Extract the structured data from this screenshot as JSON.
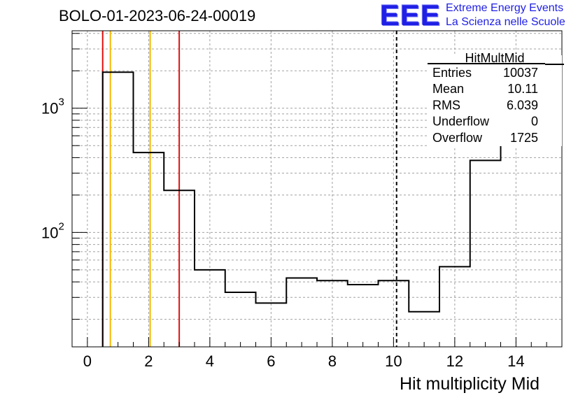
{
  "header": {
    "title": "BOLO-01-2023-06-24-00019",
    "logo_text": "EEE",
    "logo_line1": "Extreme Energy Events",
    "logo_line2": "La Scienza nelle Scuole"
  },
  "stats_box": {
    "title": "HitMultMid",
    "rows": [
      {
        "label": "Entries",
        "value": "10037"
      },
      {
        "label": "Mean",
        "value": "10.11"
      },
      {
        "label": "RMS",
        "value": "6.039"
      },
      {
        "label": "Underflow",
        "value": "0"
      },
      {
        "label": "Overflow",
        "value": "1725"
      }
    ]
  },
  "colors": {
    "red": "#e21010",
    "orange": "#f5b800",
    "histogram": "#000000",
    "grid": "#a0a0a0",
    "logo_blue": "#1f1fe6"
  },
  "chart_data": {
    "type": "histogram",
    "xlabel": "Hit multiplicity Mid",
    "ylabel": "",
    "xlim": [
      -0.5,
      15.5
    ],
    "ylim": [
      12,
      4200
    ],
    "yscale": "log",
    "grid": true,
    "x_ticks": [
      0,
      2,
      4,
      6,
      8,
      10,
      12,
      14
    ],
    "y_tick_labels": [
      {
        "value": 100,
        "base": "10",
        "exp": "2"
      },
      {
        "value": 1000,
        "base": "10",
        "exp": "3"
      }
    ],
    "bin_edges": [
      0.5,
      1.5,
      2.5,
      3.5,
      4.5,
      5.5,
      6.5,
      7.5,
      8.5,
      9.5,
      10.5,
      11.5,
      12.5,
      13.5,
      15.5
    ],
    "values": [
      1950,
      440,
      218,
      50,
      33,
      27,
      43,
      41,
      38,
      41,
      23,
      53,
      380,
      2600
    ],
    "vertical_lines": [
      {
        "x": 0.5,
        "color": "red",
        "style": "solid"
      },
      {
        "x": 0.75,
        "color": "orange",
        "style": "solid"
      },
      {
        "x": 2.05,
        "color": "orange",
        "style": "solid"
      },
      {
        "x": 3.0,
        "color": "red",
        "style": "solid"
      },
      {
        "x": 10.1,
        "color": "black",
        "style": "dashed"
      }
    ]
  }
}
